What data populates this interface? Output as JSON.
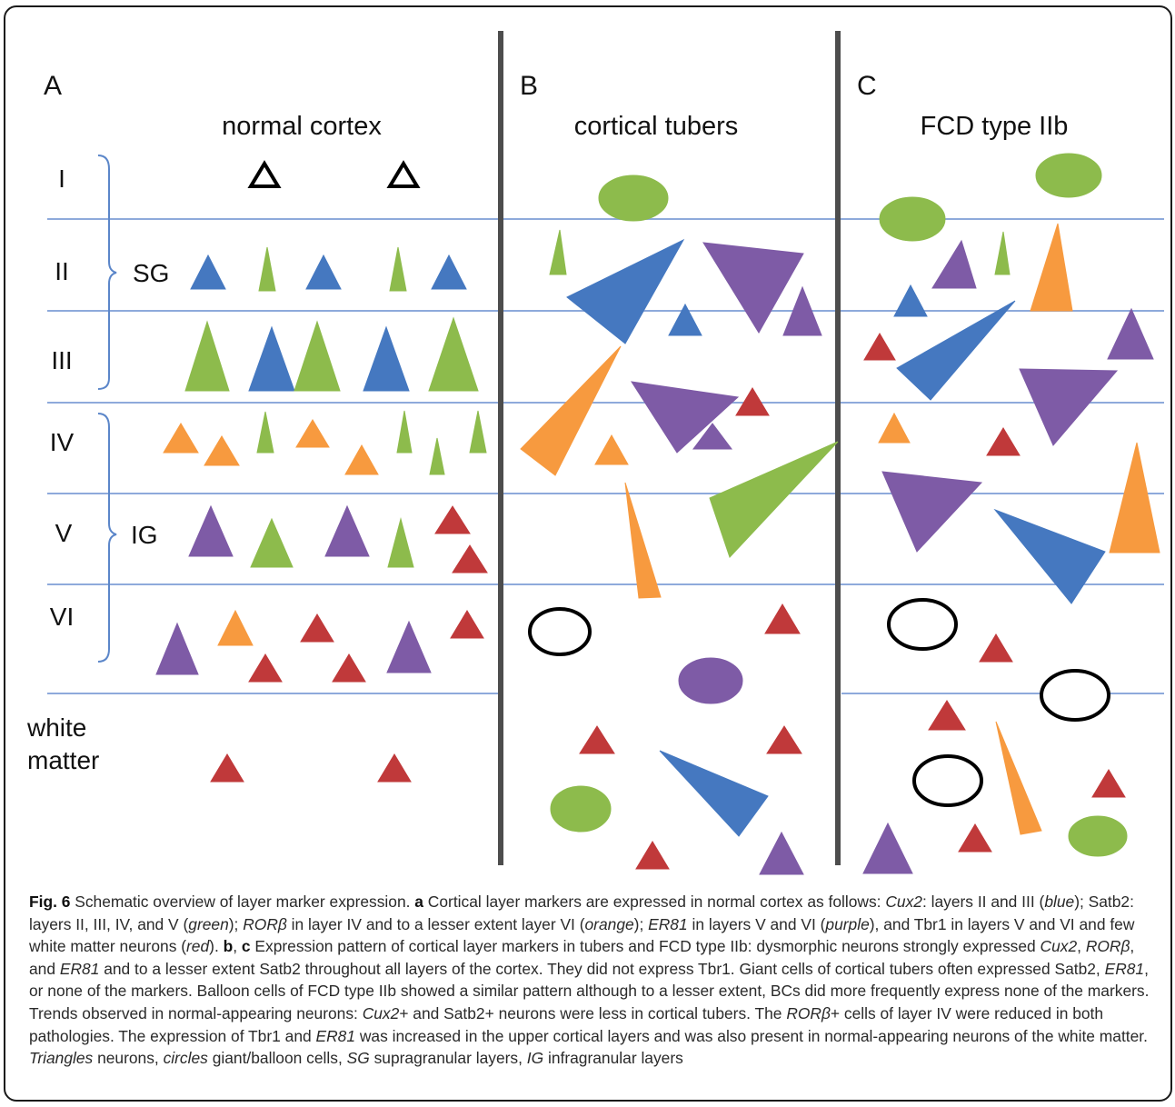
{
  "panels": {
    "a": {
      "letter": "A",
      "title": "normal cortex"
    },
    "b": {
      "letter": "B",
      "title": "cortical tubers"
    },
    "c": {
      "letter": "C",
      "title": "FCD type IIb"
    }
  },
  "layers": [
    "I",
    "II",
    "III",
    "IV",
    "V",
    "VI"
  ],
  "white_matter": [
    "white",
    "matter"
  ],
  "groups": {
    "supragranular": "SG",
    "infragranular": "IG"
  },
  "colors": {
    "blue": "#4578c0",
    "green": "#8dbb4c",
    "orange": "#f79a3f",
    "purple": "#7e5ba6",
    "red": "#c0393a",
    "layer_line": "#8eaadb",
    "divider": "#4d4d4d",
    "bracket": "#5b86c9"
  },
  "caption": [
    {
      "t": "Fig. 6",
      "s": "b"
    },
    {
      "t": " Schematic overview of layer marker expression. "
    },
    {
      "t": "a",
      "s": "b"
    },
    {
      "t": " Cortical layer markers are expressed in normal cortex as follows: "
    },
    {
      "t": "Cux2",
      "s": "i"
    },
    {
      "t": ": layers II and III ("
    },
    {
      "t": "blue",
      "s": "i"
    },
    {
      "t": "); Satb2: layers II, III, IV, and V ("
    },
    {
      "t": "green",
      "s": "i"
    },
    {
      "t": "); "
    },
    {
      "t": "RORβ",
      "s": "i"
    },
    {
      "t": " in layer IV and to a lesser extent layer VI ("
    },
    {
      "t": "orange",
      "s": "i"
    },
    {
      "t": "); "
    },
    {
      "t": "ER81",
      "s": "i"
    },
    {
      "t": " in layers V and VI ("
    },
    {
      "t": "purple",
      "s": "i"
    },
    {
      "t": "), and Tbr1 in layers V and VI and few white matter neurons ("
    },
    {
      "t": "red",
      "s": "i"
    },
    {
      "t": "). "
    },
    {
      "t": "b",
      "s": "b"
    },
    {
      "t": ", "
    },
    {
      "t": "c",
      "s": "b"
    },
    {
      "t": " Expression pattern of cortical layer markers in tubers and FCD type IIb: dysmorphic neurons strongly expressed "
    },
    {
      "t": "Cux2",
      "s": "i"
    },
    {
      "t": ", "
    },
    {
      "t": "RORβ",
      "s": "i"
    },
    {
      "t": ", and "
    },
    {
      "t": "ER81",
      "s": "i"
    },
    {
      "t": " and to a lesser extent Satb2 throughout all layers of the cortex. They did not express Tbr1. Giant cells of cortical tubers often expressed Satb2, "
    },
    {
      "t": "ER81",
      "s": "i"
    },
    {
      "t": ", or none of the markers. Balloon cells of FCD type IIb showed a similar pattern although to a lesser extent, BCs did more frequently express none of the markers. Trends observed in normal-appearing neurons: "
    },
    {
      "t": "Cux2",
      "s": "i"
    },
    {
      "t": "+ and Satb2+ neurons were less in cortical tubers. The "
    },
    {
      "t": "RORβ",
      "s": "i"
    },
    {
      "t": "+ cells of layer IV were reduced in both pathologies. The expression of Tbr1 and "
    },
    {
      "t": "ER81",
      "s": "i"
    },
    {
      "t": " was increased in the upper cortical layers and was also present in normal-appearing neurons of the white matter. "
    },
    {
      "t": "Triangles",
      "s": "i"
    },
    {
      "t": " neurons, "
    },
    {
      "t": "circles",
      "s": "i"
    },
    {
      "t": " giant/balloon cells, "
    },
    {
      "t": "SG",
      "s": "i"
    },
    {
      "t": " supragranular layers, "
    },
    {
      "t": "IG",
      "s": "i"
    },
    {
      "t": " infragranular layers"
    }
  ],
  "cells": {
    "a": [
      {
        "k": "open",
        "n": "neuron-unlabeled"
      },
      {
        "k": "open",
        "n": "neuron-unlabeled"
      },
      {
        "k": "blue",
        "n": "neuron-cux2"
      },
      {
        "k": "green",
        "n": "neuron-satb2"
      },
      {
        "k": "blue",
        "n": "neuron-cux2"
      },
      {
        "k": "green",
        "n": "neuron-satb2"
      },
      {
        "k": "blue",
        "n": "neuron-cux2"
      },
      {
        "k": "green",
        "n": "neuron-satb2"
      },
      {
        "k": "blue",
        "n": "neuron-cux2"
      },
      {
        "k": "green",
        "n": "neuron-satb2"
      },
      {
        "k": "blue",
        "n": "neuron-cux2"
      },
      {
        "k": "green",
        "n": "neuron-satb2"
      },
      {
        "k": "orange",
        "n": "neuron-rorb"
      },
      {
        "k": "orange",
        "n": "neuron-rorb"
      },
      {
        "k": "green",
        "n": "neuron-satb2"
      },
      {
        "k": "orange",
        "n": "neuron-rorb"
      },
      {
        "k": "orange",
        "n": "neuron-rorb"
      },
      {
        "k": "green",
        "n": "neuron-satb2"
      },
      {
        "k": "green",
        "n": "neuron-satb2"
      },
      {
        "k": "green",
        "n": "neuron-satb2"
      },
      {
        "k": "purple",
        "n": "neuron-er81"
      },
      {
        "k": "green",
        "n": "neuron-satb2"
      },
      {
        "k": "purple",
        "n": "neuron-er81"
      },
      {
        "k": "green",
        "n": "neuron-satb2"
      },
      {
        "k": "red",
        "n": "neuron-tbr1"
      },
      {
        "k": "red",
        "n": "neuron-tbr1"
      },
      {
        "k": "purple",
        "n": "neuron-er81"
      },
      {
        "k": "orange",
        "n": "neuron-rorb"
      },
      {
        "k": "red",
        "n": "neuron-tbr1"
      },
      {
        "k": "red",
        "n": "neuron-tbr1"
      },
      {
        "k": "red",
        "n": "neuron-tbr1"
      },
      {
        "k": "purple",
        "n": "neuron-er81"
      },
      {
        "k": "red",
        "n": "neuron-tbr1"
      },
      {
        "k": "red",
        "n": "neuron-tbr1"
      },
      {
        "k": "red",
        "n": "neuron-tbr1"
      }
    ],
    "b": [
      {
        "k": "green",
        "n": "giant-cell-satb2"
      },
      {
        "k": "green",
        "n": "neuron-satb2"
      },
      {
        "k": "blue",
        "n": "dysmorphic-neuron-cux2"
      },
      {
        "k": "purple",
        "n": "dysmorphic-neuron-er81"
      },
      {
        "k": "blue",
        "n": "neuron-cux2"
      },
      {
        "k": "purple",
        "n": "neuron-er81"
      },
      {
        "k": "orange",
        "n": "dysmorphic-neuron-rorb"
      },
      {
        "k": "orange",
        "n": "neuron-rorb"
      },
      {
        "k": "purple",
        "n": "dysmorphic-neuron-er81"
      },
      {
        "k": "red",
        "n": "neuron-tbr1"
      },
      {
        "k": "purple",
        "n": "neuron-er81"
      },
      {
        "k": "green",
        "n": "dysmorphic-neuron-satb2"
      },
      {
        "k": "orange",
        "n": "dysmorphic-neuron-rorb"
      },
      {
        "k": "open",
        "n": "giant-cell-unlabeled"
      },
      {
        "k": "red",
        "n": "neuron-tbr1"
      },
      {
        "k": "purple",
        "n": "giant-cell-er81"
      },
      {
        "k": "red",
        "n": "neuron-tbr1"
      },
      {
        "k": "red",
        "n": "neuron-tbr1"
      },
      {
        "k": "blue",
        "n": "dysmorphic-neuron-cux2"
      },
      {
        "k": "green",
        "n": "giant-cell-satb2"
      },
      {
        "k": "red",
        "n": "neuron-tbr1"
      },
      {
        "k": "purple",
        "n": "neuron-er81"
      }
    ],
    "c": [
      {
        "k": "green",
        "n": "balloon-cell-satb2"
      },
      {
        "k": "green",
        "n": "balloon-cell-satb2"
      },
      {
        "k": "purple",
        "n": "neuron-er81"
      },
      {
        "k": "green",
        "n": "neuron-satb2"
      },
      {
        "k": "orange",
        "n": "dysmorphic-neuron-rorb"
      },
      {
        "k": "blue",
        "n": "neuron-cux2"
      },
      {
        "k": "blue",
        "n": "dysmorphic-neuron-cux2"
      },
      {
        "k": "red",
        "n": "neuron-tbr1"
      },
      {
        "k": "purple",
        "n": "neuron-er81"
      },
      {
        "k": "purple",
        "n": "dysmorphic-neuron-er81"
      },
      {
        "k": "orange",
        "n": "neuron-rorb"
      },
      {
        "k": "red",
        "n": "neuron-tbr1"
      },
      {
        "k": "purple",
        "n": "dysmorphic-neuron-er81"
      },
      {
        "k": "blue",
        "n": "dysmorphic-neuron-cux2"
      },
      {
        "k": "orange",
        "n": "dysmorphic-neuron-rorb"
      },
      {
        "k": "open",
        "n": "balloon-cell-unlabeled"
      },
      {
        "k": "red",
        "n": "neuron-tbr1"
      },
      {
        "k": "open",
        "n": "balloon-cell-unlabeled"
      },
      {
        "k": "red",
        "n": "neuron-tbr1"
      },
      {
        "k": "open",
        "n": "balloon-cell-unlabeled"
      },
      {
        "k": "orange",
        "n": "dysmorphic-neuron-rorb"
      },
      {
        "k": "red",
        "n": "neuron-tbr1"
      },
      {
        "k": "red",
        "n": "neuron-tbr1"
      },
      {
        "k": "green",
        "n": "balloon-cell-satb2"
      },
      {
        "k": "purple",
        "n": "neuron-er81"
      }
    ]
  }
}
